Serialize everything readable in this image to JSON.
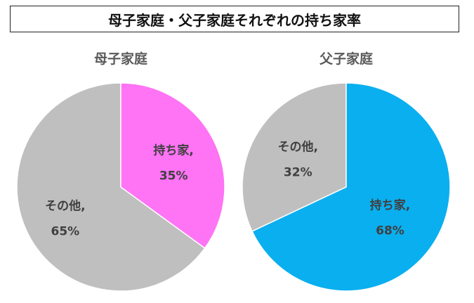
{
  "figure_title": "母子家庭・父子家庭それぞれの持ち家率",
  "chart_data": [
    {
      "type": "pie",
      "title": "母子家庭",
      "categories": [
        "持ち家",
        "その他"
      ],
      "values": [
        35,
        65
      ],
      "labels": [
        {
          "name": "持ち家,",
          "value": "35%"
        },
        {
          "name": "その他,",
          "value": "65%"
        }
      ],
      "colors": [
        "#FF73F5",
        "#BFBFBF"
      ]
    },
    {
      "type": "pie",
      "title": "父子家庭",
      "categories": [
        "持ち家",
        "その他"
      ],
      "values": [
        68,
        32
      ],
      "labels": [
        {
          "name": "持ち家,",
          "value": "68%"
        },
        {
          "name": "その他,",
          "value": "32%"
        }
      ],
      "colors": [
        "#0AAFEF",
        "#BFBFBF"
      ]
    }
  ]
}
